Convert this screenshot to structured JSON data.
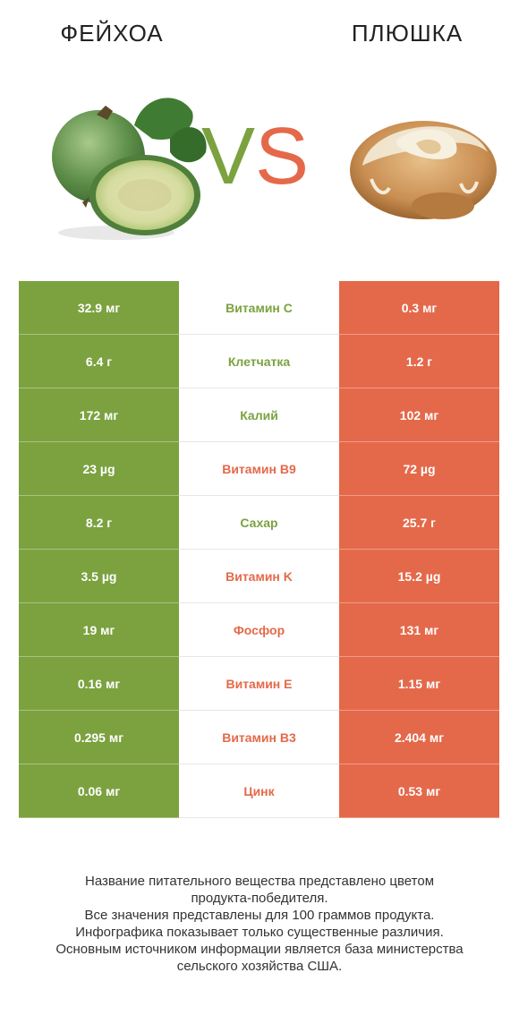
{
  "header": {
    "left_title": "ФЕЙХОА",
    "right_title": "ПЛЮШКА",
    "vs_v": "V",
    "vs_s": "S"
  },
  "colors": {
    "green": "#7ba23f",
    "orange": "#e4694a"
  },
  "rows": [
    {
      "left": "32.9 мг",
      "label": "Витамин C",
      "right": "0.3 мг",
      "winner": "left"
    },
    {
      "left": "6.4 г",
      "label": "Клетчатка",
      "right": "1.2 г",
      "winner": "left"
    },
    {
      "left": "172 мг",
      "label": "Калий",
      "right": "102 мг",
      "winner": "left"
    },
    {
      "left": "23 µg",
      "label": "Витамин B9",
      "right": "72 µg",
      "winner": "right"
    },
    {
      "left": "8.2 г",
      "label": "Сахар",
      "right": "25.7 г",
      "winner": "left"
    },
    {
      "left": "3.5 µg",
      "label": "Витамин K",
      "right": "15.2 µg",
      "winner": "right"
    },
    {
      "left": "19 мг",
      "label": "Фосфор",
      "right": "131 мг",
      "winner": "right"
    },
    {
      "left": "0.16 мг",
      "label": "Витамин E",
      "right": "1.15 мг",
      "winner": "right"
    },
    {
      "left": "0.295 мг",
      "label": "Витамин B3",
      "right": "2.404 мг",
      "winner": "right"
    },
    {
      "left": "0.06 мг",
      "label": "Цинк",
      "right": "0.53 мг",
      "winner": "right"
    }
  ],
  "footer": {
    "line1": "Название питательного вещества представлено цветом",
    "line2": "продукта-победителя.",
    "line3": "Все значения представлены для 100 граммов продукта.",
    "line4": "Инфографика показывает только существенные различия.",
    "line5": "Основным источником информации является база министерства",
    "line6": "сельского хозяйства США."
  }
}
